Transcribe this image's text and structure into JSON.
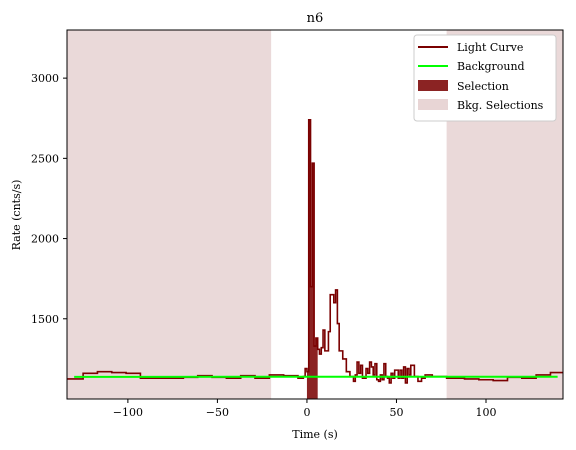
{
  "chart_data": {
    "type": "line",
    "title": "n6",
    "xlabel": "Time (s)",
    "ylabel": "Rate (cnts/s)",
    "xlim": [
      -134,
      143
    ],
    "ylim": [
      1000,
      3300
    ],
    "x_ticks": [
      -100,
      -50,
      0,
      50,
      100
    ],
    "x_tick_labels": [
      "−100",
      "−50",
      "0",
      "50",
      "100"
    ],
    "y_ticks": [
      1500,
      2000,
      2500,
      3000
    ],
    "y_tick_labels": [
      "1500",
      "2000",
      "2500",
      "3000"
    ],
    "grid": false,
    "legend_position": "top-right",
    "colors": {
      "light_curve": "#7a0000",
      "background": "#00ff00",
      "selection": "#8b2323",
      "bkg_selection": "#e8d5d5"
    },
    "series": [
      {
        "name": "Light Curve",
        "style": "step",
        "points": [
          [
            -134,
            1125
          ],
          [
            -125,
            1160
          ],
          [
            -117,
            1170
          ],
          [
            -109,
            1165
          ],
          [
            -101,
            1160
          ],
          [
            -93,
            1130
          ],
          [
            -85,
            1130
          ],
          [
            -77,
            1130
          ],
          [
            -69,
            1135
          ],
          [
            -61,
            1145
          ],
          [
            -53,
            1135
          ],
          [
            -45,
            1130
          ],
          [
            -37,
            1145
          ],
          [
            -29,
            1130
          ],
          [
            -21,
            1150
          ],
          [
            -13,
            1145
          ],
          [
            -5,
            1130
          ],
          [
            -2,
            1140
          ],
          [
            -1,
            1190
          ],
          [
            0,
            1170
          ],
          [
            1,
            2740
          ],
          [
            2,
            1700
          ],
          [
            3,
            2470
          ],
          [
            4,
            1330
          ],
          [
            5,
            1380
          ],
          [
            6,
            1310
          ],
          [
            7,
            1280
          ],
          [
            8,
            1320
          ],
          [
            9,
            1430
          ],
          [
            10,
            1300
          ],
          [
            12,
            1420
          ],
          [
            13,
            1650
          ],
          [
            15,
            1600
          ],
          [
            16,
            1680
          ],
          [
            17,
            1470
          ],
          [
            18,
            1300
          ],
          [
            20,
            1250
          ],
          [
            22,
            1170
          ],
          [
            24,
            1140
          ],
          [
            26,
            1110
          ],
          [
            27,
            1150
          ],
          [
            28,
            1230
          ],
          [
            29,
            1160
          ],
          [
            30,
            1210
          ],
          [
            31,
            1130
          ],
          [
            33,
            1190
          ],
          [
            34,
            1160
          ],
          [
            35,
            1230
          ],
          [
            36,
            1200
          ],
          [
            37,
            1150
          ],
          [
            38,
            1220
          ],
          [
            39,
            1120
          ],
          [
            40,
            1110
          ],
          [
            41,
            1150
          ],
          [
            42,
            1120
          ],
          [
            43,
            1220
          ],
          [
            44,
            1140
          ],
          [
            45,
            1130
          ],
          [
            46,
            1100
          ],
          [
            47,
            1160
          ],
          [
            48,
            1130
          ],
          [
            49,
            1180
          ],
          [
            51,
            1130
          ],
          [
            52,
            1180
          ],
          [
            53,
            1130
          ],
          [
            54,
            1200
          ],
          [
            55,
            1100
          ],
          [
            56,
            1190
          ],
          [
            57,
            1150
          ],
          [
            58,
            1210
          ],
          [
            60,
            1140
          ],
          [
            62,
            1110
          ],
          [
            64,
            1130
          ],
          [
            66,
            1150
          ],
          [
            70,
            1140
          ],
          [
            78,
            1130
          ],
          [
            88,
            1125
          ],
          [
            96,
            1120
          ],
          [
            104,
            1115
          ],
          [
            112,
            1135
          ],
          [
            120,
            1130
          ],
          [
            128,
            1150
          ],
          [
            136,
            1165
          ],
          [
            143,
            1165
          ]
        ]
      },
      {
        "name": "Background",
        "style": "line",
        "points": [
          [
            -130,
            1138
          ],
          [
            140,
            1139
          ]
        ]
      }
    ],
    "selection": {
      "name": "Selection",
      "range": [
        0,
        6
      ]
    },
    "bkg_selections": {
      "name": "Bkg. Selections",
      "ranges": [
        [
          -134,
          -20
        ],
        [
          78,
          143
        ]
      ]
    },
    "legend": [
      "Light Curve",
      "Background",
      "Selection",
      "Bkg. Selections"
    ]
  }
}
